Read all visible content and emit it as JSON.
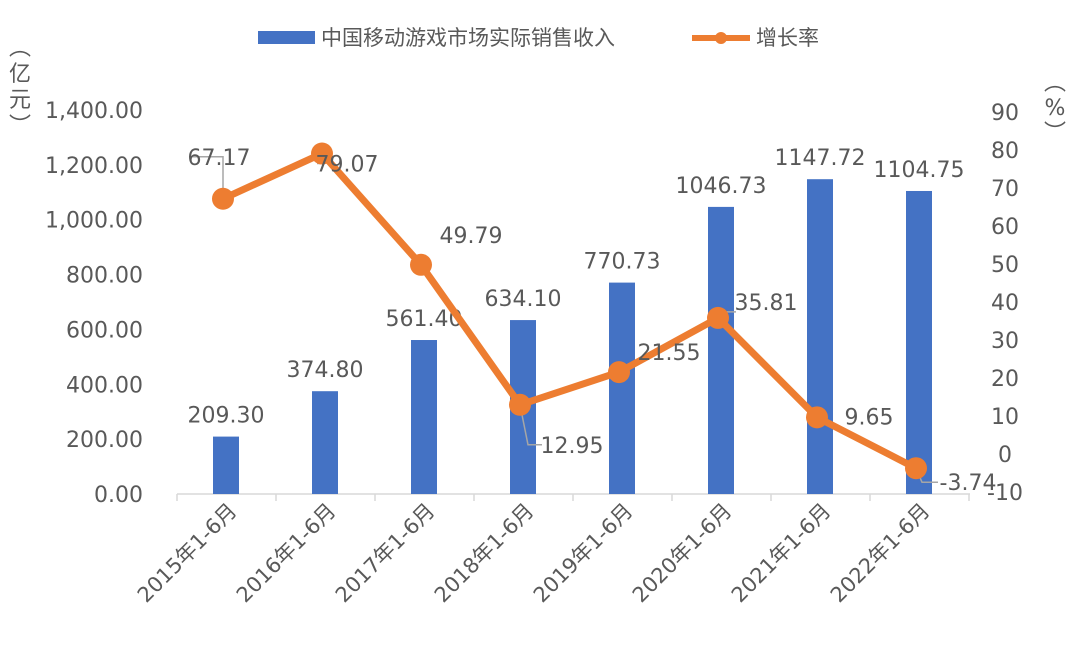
{
  "chart_data": {
    "type": "bar+line",
    "categories": [
      "2015年1-6月",
      "2016年1-6月",
      "2017年1-6月",
      "2018年1-6月",
      "2019年1-6月",
      "2020年1-6月",
      "2021年1-6月",
      "2022年1-6月"
    ],
    "series": [
      {
        "name": "中国移动游戏市场实际销售收入",
        "type": "bar",
        "axis": "left",
        "color": "#4472C4",
        "values": [
          209.3,
          374.8,
          561.4,
          634.1,
          770.73,
          1046.73,
          1147.72,
          1104.75
        ],
        "labels": [
          "209.30",
          "374.80",
          "561.40",
          "634.10",
          "770.73",
          "1046.73",
          "1147.72",
          "1104.75"
        ]
      },
      {
        "name": "增长率",
        "type": "line",
        "axis": "right",
        "color": "#ED7D31",
        "values": [
          67.17,
          79.07,
          49.79,
          12.95,
          21.55,
          35.81,
          9.65,
          -3.74
        ],
        "labels": [
          "67.17",
          "79.07",
          "49.79",
          "12.95",
          "21.55",
          "35.81",
          "9.65",
          "-3.74"
        ]
      }
    ],
    "ylabel_left": "（亿元）",
    "ylabel_left_chars": [
      "︵",
      "亿",
      "元",
      "︶"
    ],
    "ylabel_right_chars": [
      "︵",
      "%",
      "︶"
    ],
    "ylim_left": [
      0,
      1400
    ],
    "yticks_left": [
      "0.00",
      "200.00",
      "400.00",
      "600.00",
      "800.00",
      "1,000.00",
      "1,200.00",
      "1,400.00"
    ],
    "ylim_right": [
      -10,
      90
    ],
    "yticks_right": [
      "-10",
      "0",
      "10",
      "20",
      "30",
      "40",
      "50",
      "60",
      "70",
      "80",
      "90"
    ],
    "grid": false,
    "legend_position": "top"
  }
}
